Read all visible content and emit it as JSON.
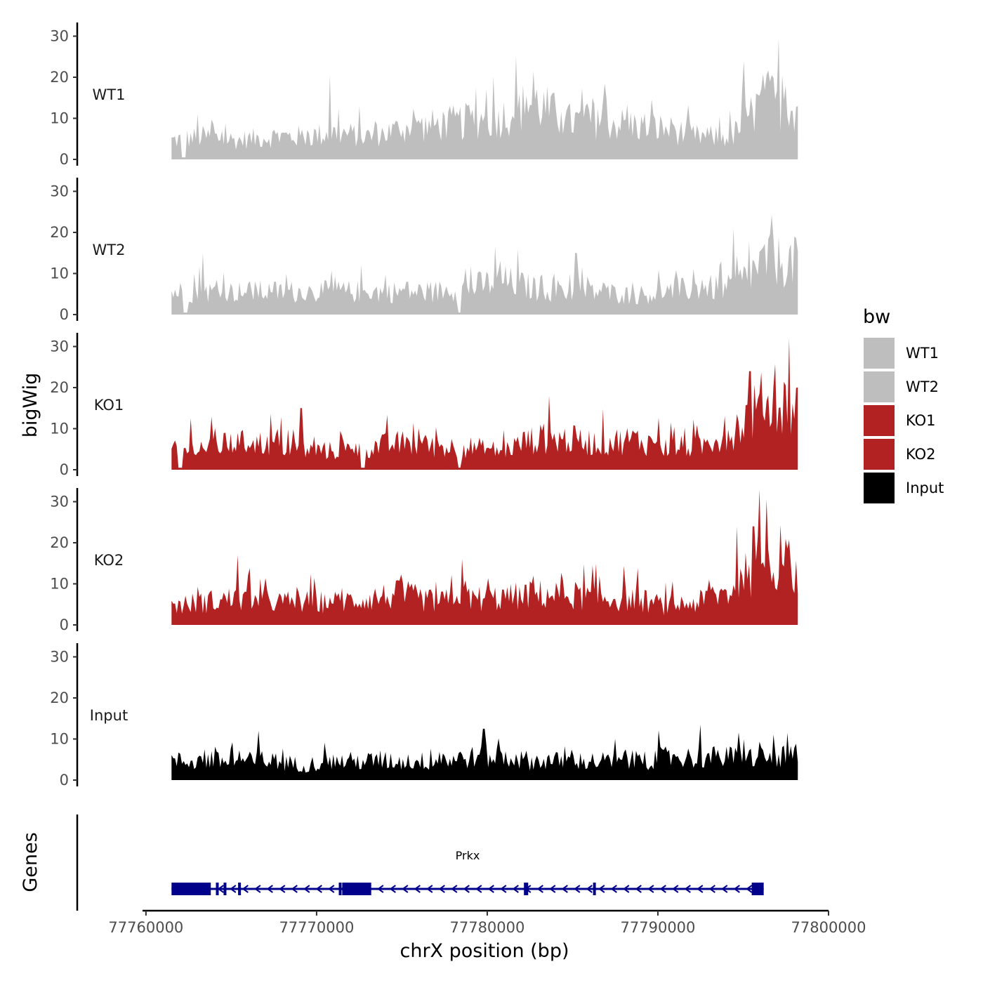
{
  "chart_data": {
    "type": "area",
    "ylabel": "bigWig",
    "xlabel": "chrX position (bp)",
    "ylim": [
      0,
      33
    ],
    "y_ticks": [
      "0",
      "10",
      "20",
      "30"
    ],
    "x_range": [
      77759800,
      77800000
    ],
    "x_ticks": [
      "77760000",
      "77770000",
      "77780000",
      "77790000",
      "77800000"
    ],
    "x_tick_values": [
      77760000,
      77770000,
      77780000,
      77790000,
      77800000
    ],
    "data_x_range": [
      77761500,
      77798200
    ],
    "series": [
      {
        "name": "WT1",
        "color": "#bebebe",
        "profile": [
          5,
          6,
          5,
          6,
          6,
          7,
          6,
          8,
          9,
          10,
          11,
          15,
          10,
          10,
          9,
          8,
          6,
          6,
          16,
          14
        ]
      },
      {
        "name": "WT2",
        "color": "#bebebe",
        "profile": [
          6,
          6,
          6,
          6,
          6,
          6,
          6,
          6,
          6,
          7,
          9,
          7,
          6,
          6,
          5,
          6,
          7,
          7,
          14,
          14
        ]
      },
      {
        "name": "KO1",
        "color": "#b22222",
        "profile": [
          5,
          6,
          7,
          7,
          5,
          5,
          6,
          7,
          6,
          6,
          5,
          8,
          8,
          7,
          8,
          6,
          6,
          10,
          18,
          16
        ]
      },
      {
        "name": "KO2",
        "color": "#b22222",
        "profile": [
          5,
          6,
          7,
          6,
          6,
          6,
          7,
          8,
          6,
          7,
          7,
          8,
          8,
          7,
          7,
          5,
          6,
          9,
          18,
          14
        ]
      },
      {
        "name": "Input",
        "color": "#000000",
        "profile": [
          5,
          5,
          5,
          5,
          4,
          5,
          5,
          5,
          5,
          6,
          6,
          5,
          5,
          5,
          5,
          6,
          6,
          6,
          6,
          6
        ]
      }
    ],
    "peaks": {
      "WT1": [
        [
          77763000,
          11
        ],
        [
          77770800,
          20.5
        ],
        [
          77795000,
          24
        ],
        [
          77796400,
          20.5
        ],
        [
          77797500,
          18
        ]
      ],
      "WT2": [
        [
          77763300,
          15
        ],
        [
          77785200,
          15
        ],
        [
          77794400,
          21
        ],
        [
          77796800,
          18.5
        ],
        [
          77798000,
          19
        ]
      ],
      "KO1": [
        [
          77762600,
          12.5
        ],
        [
          77769100,
          15
        ],
        [
          77783600,
          18
        ],
        [
          77795400,
          24
        ],
        [
          77797700,
          32
        ]
      ],
      "KO2": [
        [
          77765400,
          17
        ],
        [
          77778500,
          16
        ],
        [
          77794600,
          24
        ],
        [
          77795600,
          24
        ],
        [
          77797500,
          21
        ]
      ],
      "Input": [
        [
          77766600,
          12
        ],
        [
          77779800,
          12.5
        ],
        [
          77792500,
          13.5
        ],
        [
          77797600,
          11.5
        ]
      ]
    },
    "dips": {
      "KO1": [
        77762000,
        77772700,
        77778400
      ],
      "WT2": [
        77762300,
        77778400
      ],
      "WT1": [
        77762200
      ]
    },
    "legend": {
      "title": "bw",
      "position": "right",
      "entries": [
        {
          "label": "WT1",
          "color": "#bebebe"
        },
        {
          "label": "WT2",
          "color": "#bebebe"
        },
        {
          "label": "KO1",
          "color": "#b22222"
        },
        {
          "label": "KO2",
          "color": "#b22222"
        },
        {
          "label": "Input",
          "color": "#000000"
        }
      ]
    },
    "genes_track": {
      "label": "Genes",
      "gene_name": "Prkx",
      "color": "#00008b",
      "start": 77761500,
      "end": 77796200,
      "strand": "-",
      "exons": [
        [
          77761500,
          77763800
        ],
        [
          77764100,
          77764250
        ],
        [
          77764550,
          77764700
        ],
        [
          77765400,
          77765550
        ],
        [
          77771300,
          77771400
        ],
        [
          77771500,
          77773200
        ],
        [
          77782150,
          77782400
        ],
        [
          77786200,
          77786350
        ],
        [
          77795500,
          77796200
        ]
      ]
    },
    "grid": false
  }
}
